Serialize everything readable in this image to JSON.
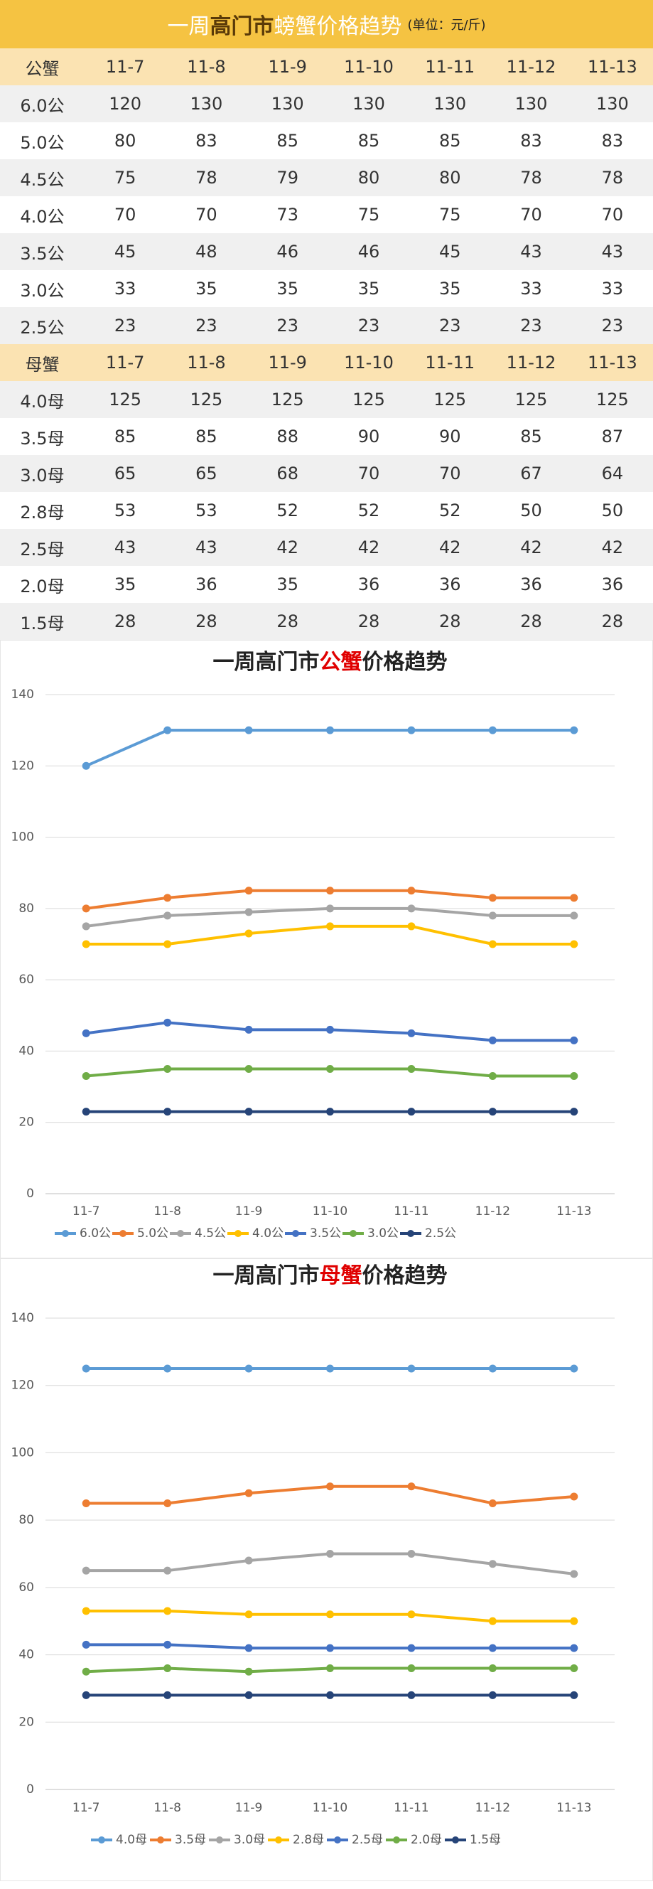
{
  "header": {
    "title": [
      "一周",
      "高门市",
      "螃蟹价格趋势"
    ],
    "unit": "(单位：元/斤)"
  },
  "table": {
    "sections": [
      {
        "header": [
          "公蟹",
          "11-7",
          "11-8",
          "11-9",
          "11-10",
          "11-11",
          "11-12",
          "11-13"
        ],
        "rows": [
          [
            "6.0公",
            120,
            130,
            130,
            130,
            130,
            130,
            130
          ],
          [
            "5.0公",
            80,
            83,
            85,
            85,
            85,
            83,
            83
          ],
          [
            "4.5公",
            75,
            78,
            79,
            80,
            80,
            78,
            78
          ],
          [
            "4.0公",
            70,
            70,
            73,
            75,
            75,
            70,
            70
          ],
          [
            "3.5公",
            45,
            48,
            46,
            46,
            45,
            43,
            43
          ],
          [
            "3.0公",
            33,
            35,
            35,
            35,
            35,
            33,
            33
          ],
          [
            "2.5公",
            23,
            23,
            23,
            23,
            23,
            23,
            23
          ]
        ]
      },
      {
        "header": [
          "母蟹",
          "11-7",
          "11-8",
          "11-9",
          "11-10",
          "11-11",
          "11-12",
          "11-13"
        ],
        "rows": [
          [
            "4.0母",
            125,
            125,
            125,
            125,
            125,
            125,
            125
          ],
          [
            "3.5母",
            85,
            85,
            88,
            90,
            90,
            85,
            87
          ],
          [
            "3.0母",
            65,
            65,
            68,
            70,
            70,
            67,
            64
          ],
          [
            "2.8母",
            53,
            53,
            52,
            52,
            52,
            50,
            50
          ],
          [
            "2.5母",
            43,
            43,
            42,
            42,
            42,
            42,
            42
          ],
          [
            "2.0母",
            35,
            36,
            35,
            36,
            36,
            36,
            36
          ],
          [
            "1.5母",
            28,
            28,
            28,
            28,
            28,
            28,
            28
          ]
        ]
      }
    ]
  },
  "chart_data": [
    {
      "type": "line",
      "title": [
        "一周高门市",
        "公蟹",
        "价格趋势"
      ],
      "categories": [
        "11-7",
        "11-8",
        "11-9",
        "11-10",
        "11-11",
        "11-12",
        "11-13"
      ],
      "series": [
        {
          "name": "6.0公",
          "color": "#5b9bd5",
          "values": [
            120,
            130,
            130,
            130,
            130,
            130,
            130
          ]
        },
        {
          "name": "5.0公",
          "color": "#ed7d31",
          "values": [
            80,
            83,
            85,
            85,
            85,
            83,
            83
          ]
        },
        {
          "name": "4.5公",
          "color": "#a5a5a5",
          "values": [
            75,
            78,
            79,
            80,
            80,
            78,
            78
          ]
        },
        {
          "name": "4.0公",
          "color": "#ffc000",
          "values": [
            70,
            70,
            73,
            75,
            75,
            70,
            70
          ]
        },
        {
          "name": "3.5公",
          "color": "#4472c4",
          "values": [
            45,
            48,
            46,
            46,
            45,
            43,
            43
          ]
        },
        {
          "name": "3.0公",
          "color": "#70ad47",
          "values": [
            33,
            35,
            35,
            35,
            35,
            33,
            33
          ]
        },
        {
          "name": "2.5公",
          "color": "#264478",
          "values": [
            23,
            23,
            23,
            23,
            23,
            23,
            23
          ]
        }
      ],
      "ylim": [
        0,
        140
      ],
      "yticks": [
        0,
        20,
        40,
        60,
        80,
        100,
        120,
        140
      ],
      "grid": true,
      "legend": "bottom"
    },
    {
      "type": "line",
      "title": [
        "一周高门市",
        "母蟹",
        "价格趋势"
      ],
      "categories": [
        "11-7",
        "11-8",
        "11-9",
        "11-10",
        "11-11",
        "11-12",
        "11-13"
      ],
      "series": [
        {
          "name": "4.0母",
          "color": "#5b9bd5",
          "values": [
            125,
            125,
            125,
            125,
            125,
            125,
            125
          ]
        },
        {
          "name": "3.5母",
          "color": "#ed7d31",
          "values": [
            85,
            85,
            88,
            90,
            90,
            85,
            87
          ]
        },
        {
          "name": "3.0母",
          "color": "#a5a5a5",
          "values": [
            65,
            65,
            68,
            70,
            70,
            67,
            64
          ]
        },
        {
          "name": "2.8母",
          "color": "#ffc000",
          "values": [
            53,
            53,
            52,
            52,
            52,
            50,
            50
          ]
        },
        {
          "name": "2.5母",
          "color": "#4472c4",
          "values": [
            43,
            43,
            42,
            42,
            42,
            42,
            42
          ]
        },
        {
          "name": "2.0母",
          "color": "#70ad47",
          "values": [
            35,
            36,
            35,
            36,
            36,
            36,
            36
          ]
        },
        {
          "name": "1.5母",
          "color": "#264478",
          "values": [
            28,
            28,
            28,
            28,
            28,
            28,
            28
          ]
        }
      ],
      "ylim": [
        0,
        140
      ],
      "yticks": [
        0,
        20,
        40,
        60,
        80,
        100,
        120,
        140
      ],
      "grid": true,
      "legend": "bottom"
    }
  ]
}
